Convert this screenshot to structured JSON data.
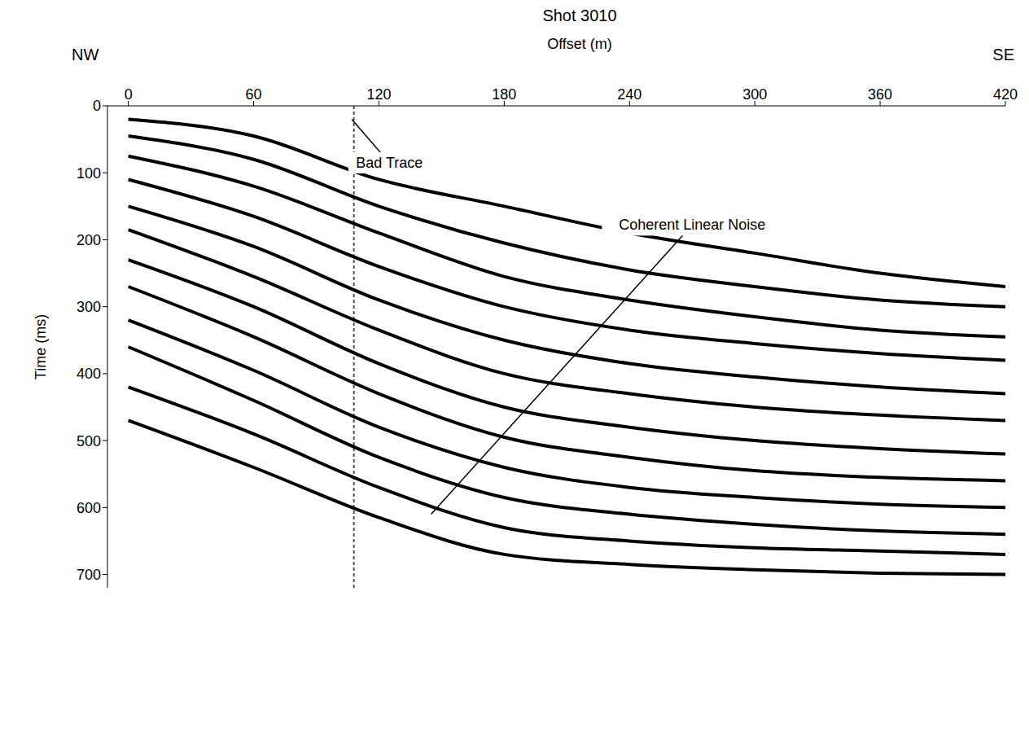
{
  "chart_data": {
    "type": "line",
    "title": "Shot 3010",
    "left_label": "NW",
    "right_label": "SE",
    "x_label": "Offset (m)",
    "y_label": "Time (ms)",
    "xlim": [
      -10,
      420
    ],
    "xticks": [
      0,
      60,
      120,
      180,
      240,
      300,
      360,
      420
    ],
    "ylim": [
      0,
      720
    ],
    "yticks": [
      0,
      100,
      200,
      300,
      400,
      500,
      600,
      700
    ],
    "y_reversed": true,
    "grid": false,
    "x": [
      0,
      60,
      120,
      180,
      240,
      300,
      360,
      420
    ],
    "series": [
      {
        "color": "#000000",
        "values": [
          20,
          45,
          110,
          150,
          190,
          220,
          250,
          270
        ]
      },
      {
        "color": "#000000",
        "values": [
          45,
          80,
          150,
          205,
          245,
          270,
          290,
          300
        ]
      },
      {
        "color": "#000000",
        "values": [
          75,
          120,
          190,
          255,
          290,
          315,
          335,
          345
        ]
      },
      {
        "color": "#000000",
        "values": [
          110,
          165,
          240,
          300,
          335,
          355,
          370,
          380
        ]
      },
      {
        "color": "#000000",
        "values": [
          150,
          210,
          290,
          350,
          385,
          405,
          420,
          430
        ]
      },
      {
        "color": "#000000",
        "values": [
          185,
          255,
          335,
          400,
          430,
          450,
          462,
          470
        ]
      },
      {
        "color": "#000000",
        "values": [
          230,
          300,
          385,
          450,
          480,
          500,
          512,
          520
        ]
      },
      {
        "color": "#000000",
        "values": [
          270,
          345,
          430,
          495,
          525,
          545,
          555,
          560
        ]
      },
      {
        "color": "#000000",
        "values": [
          320,
          395,
          480,
          540,
          570,
          585,
          595,
          600
        ]
      },
      {
        "color": "#000000",
        "values": [
          360,
          440,
          525,
          585,
          610,
          625,
          635,
          640
        ]
      },
      {
        "color": "#000000",
        "values": [
          420,
          490,
          570,
          630,
          650,
          660,
          665,
          670
        ]
      },
      {
        "color": "#000000",
        "values": [
          470,
          540,
          615,
          670,
          685,
          693,
          698,
          700
        ]
      }
    ],
    "bad_trace_offset": 108,
    "annotations": [
      {
        "text": "Bad Trace",
        "x": 125,
        "y": 85,
        "target_x": 107,
        "target_y": 20
      },
      {
        "text": "Coherent Linear Noise",
        "x": 270,
        "y": 178,
        "target_x": 145,
        "target_y": 610
      }
    ]
  }
}
